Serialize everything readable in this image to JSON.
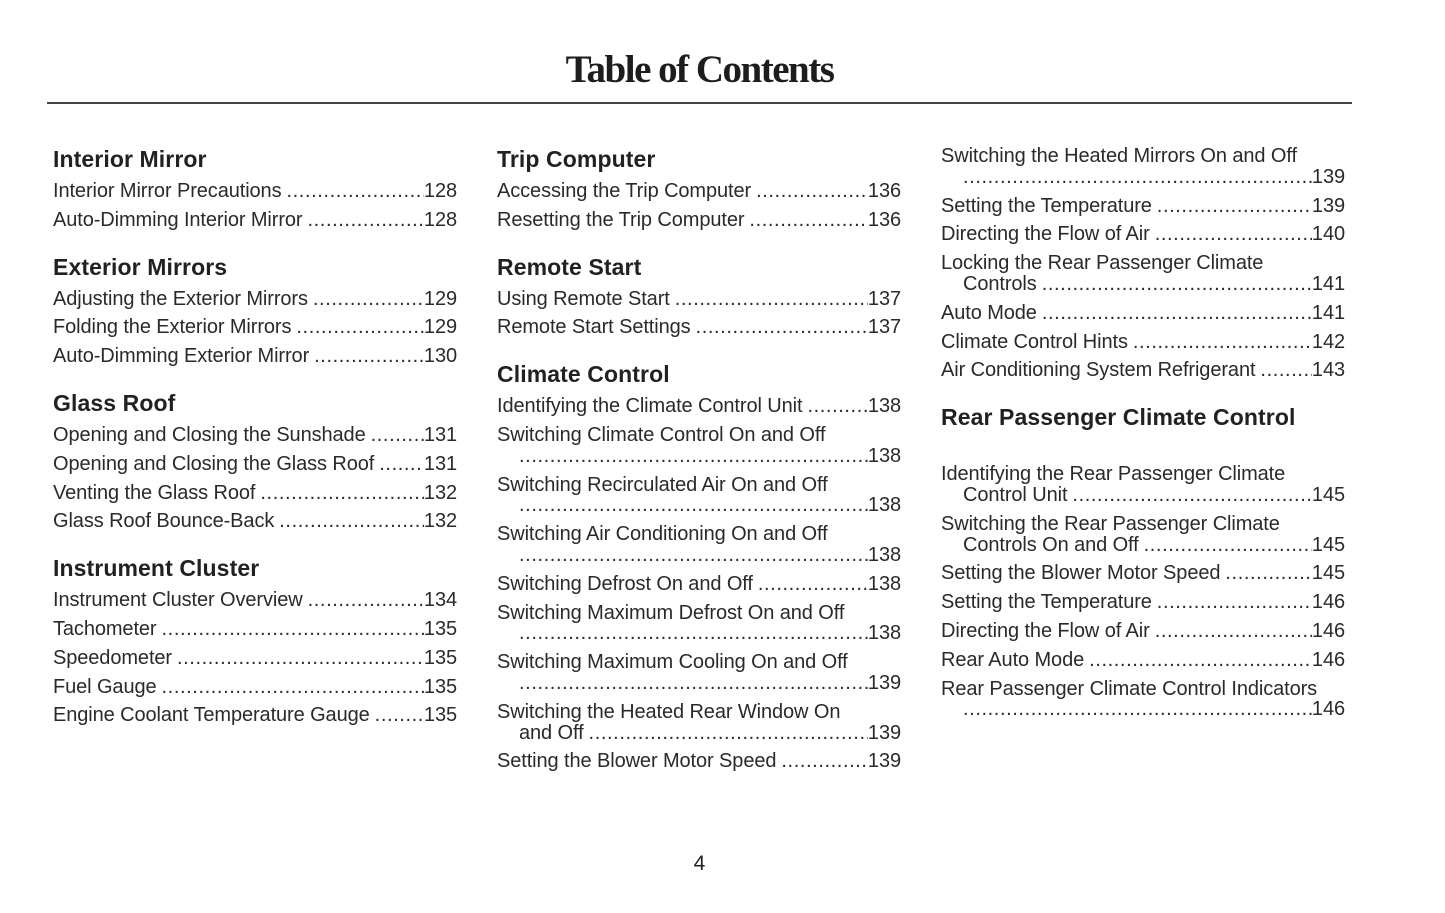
{
  "page": {
    "title": "Table of Contents",
    "page_number": "4"
  },
  "colors": {
    "background": "#ffffff",
    "text": "#2b292a",
    "heading": "#232021",
    "rule": "#454545"
  },
  "columns": [
    {
      "sections": [
        {
          "heading": "Interior Mirror",
          "entries": [
            {
              "label": "Interior Mirror Precautions",
              "page": "128"
            },
            {
              "label": "Auto-Dimming Interior Mirror",
              "page": "128"
            }
          ]
        },
        {
          "heading": "Exterior Mirrors",
          "entries": [
            {
              "label": "Adjusting the Exterior Mirrors",
              "page": "129"
            },
            {
              "label": "Folding the Exterior Mirrors",
              "page": "129"
            },
            {
              "label": "Auto-Dimming Exterior Mirror",
              "page": "130"
            }
          ]
        },
        {
          "heading": "Glass Roof",
          "entries": [
            {
              "label": "Opening and Closing the Sunshade",
              "page": "131"
            },
            {
              "label": "Opening and Closing the Glass Roof",
              "page": "131"
            },
            {
              "label": "Venting the Glass Roof",
              "page": "132"
            },
            {
              "label": "Glass Roof Bounce-Back",
              "page": "132"
            }
          ]
        },
        {
          "heading": "Instrument Cluster",
          "entries": [
            {
              "label": "Instrument Cluster Overview",
              "page": "134"
            },
            {
              "label": "Tachometer",
              "page": "135"
            },
            {
              "label": "Speedometer",
              "page": "135"
            },
            {
              "label": "Fuel Gauge",
              "page": "135"
            },
            {
              "label": "Engine Coolant Temperature Gauge",
              "page": "135"
            }
          ]
        }
      ]
    },
    {
      "sections": [
        {
          "heading": "Trip Computer",
          "entries": [
            {
              "label": "Accessing the Trip Computer",
              "page": "136"
            },
            {
              "label": "Resetting the Trip Computer",
              "page": "136"
            }
          ]
        },
        {
          "heading": "Remote Start",
          "entries": [
            {
              "label": "Using Remote Start",
              "page": "137"
            },
            {
              "label": "Remote Start Settings",
              "page": "137"
            }
          ]
        },
        {
          "heading": "Climate Control",
          "entries": [
            {
              "label": "Identifying the Climate Control Unit",
              "page": "138"
            },
            {
              "label": "Switching Climate Control On and Off",
              "wrap": true,
              "tail": "",
              "page": "138"
            },
            {
              "label": "Switching Recirculated Air On and Off",
              "wrap": true,
              "tail": "",
              "page": "138"
            },
            {
              "label": "Switching Air Conditioning On and Off",
              "wrap": true,
              "tail": "",
              "page": "138"
            },
            {
              "label": "Switching Defrost On and Off",
              "page": "138"
            },
            {
              "label": "Switching Maximum Defrost On and Off",
              "wrap": true,
              "tail": "",
              "page": "138"
            },
            {
              "label": "Switching Maximum Cooling On and Off",
              "wrap": true,
              "tail": "",
              "page": "139"
            },
            {
              "label": "Switching the Heated Rear Window On",
              "wrap": true,
              "tail": "and Off",
              "page": "139"
            },
            {
              "label": "Setting the Blower Motor Speed",
              "page": "139"
            }
          ]
        }
      ]
    },
    {
      "sections": [
        {
          "heading": null,
          "entries": [
            {
              "label": "Switching the Heated Mirrors On and Off",
              "wrap": true,
              "tail": "",
              "page": "139"
            },
            {
              "label": "Setting the Temperature",
              "page": "139"
            },
            {
              "label": "Directing the Flow of Air",
              "page": "140"
            },
            {
              "label": "Locking the Rear Passenger Climate",
              "wrap": true,
              "tail": "Controls",
              "page": "141"
            },
            {
              "label": "Auto Mode",
              "page": "141"
            },
            {
              "label": "Climate Control Hints",
              "page": "142"
            },
            {
              "label": "Air Conditioning System Refrigerant",
              "page": "143"
            }
          ]
        },
        {
          "heading": "Rear Passenger Climate Control",
          "extra_gap": true,
          "entries": [
            {
              "label": "Identifying the Rear Passenger Climate",
              "wrap": true,
              "tail": "Control Unit",
              "page": "145"
            },
            {
              "label": "Switching the Rear Passenger Climate",
              "wrap": true,
              "tail": "Controls On and Off",
              "page": "145"
            },
            {
              "label": "Setting the Blower Motor Speed",
              "page": "145"
            },
            {
              "label": "Setting the Temperature",
              "page": "146"
            },
            {
              "label": "Directing the Flow of Air",
              "page": "146"
            },
            {
              "label": "Rear Auto Mode",
              "page": "146"
            },
            {
              "label": "Rear Passenger Climate Control Indicators",
              "wrap": true,
              "tail": "",
              "page": "146"
            }
          ]
        }
      ]
    }
  ]
}
